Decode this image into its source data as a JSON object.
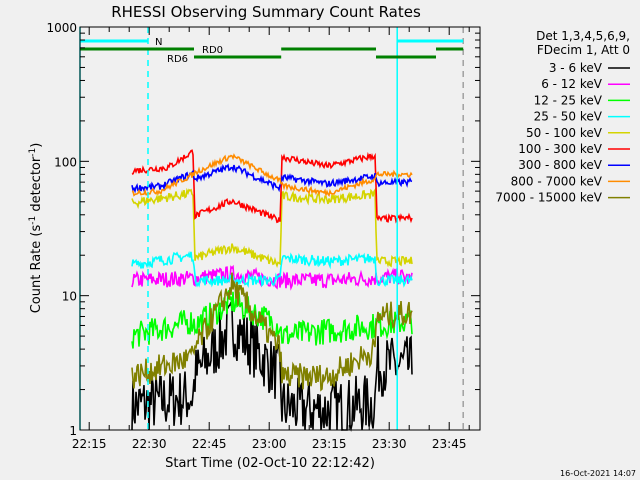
{
  "chart_data": {
    "type": "line",
    "title": "RHESSI Observing Summary Count Rates",
    "xlabel": "Start Time (02-Oct-10 22:12:42)",
    "ylabel": "Count Rate (s",
    "ylabel_sup1": "-1",
    "ylabel_mid": " detector",
    "ylabel_sup2": "-1",
    "ylabel_end": ")",
    "x_units": "minutes since 22:12:42",
    "xlim": [
      0,
      100
    ],
    "ylim": [
      1,
      1000
    ],
    "yscale": "log",
    "xticks": [
      {
        "m": 2.3,
        "label": "22:15"
      },
      {
        "m": 17.3,
        "label": "22:30"
      },
      {
        "m": 32.3,
        "label": "22:45"
      },
      {
        "m": 47.3,
        "label": "23:00"
      },
      {
        "m": 62.3,
        "label": "23:15"
      },
      {
        "m": 77.3,
        "label": "23:30"
      },
      {
        "m": 92.3,
        "label": "23:45"
      }
    ],
    "yticks": [
      {
        "v": 1,
        "label": "1"
      },
      {
        "v": 10,
        "label": "10"
      },
      {
        "v": 100,
        "label": "100"
      },
      {
        "v": 1000,
        "label": "1000"
      }
    ],
    "legend_header": [
      "Det 1,3,4,5,6,9,",
      "FDecim 1, Att 0"
    ],
    "legend_placement": "right",
    "series": [
      {
        "name": "3 - 6 keV",
        "color": "#000000",
        "noise": 0.45,
        "points": [
          [
            13,
            1.5
          ],
          [
            28.4,
            1.8
          ],
          [
            28.6,
            2.5
          ],
          [
            38,
            6
          ],
          [
            50.1,
            2.5
          ],
          [
            50.4,
            1.5
          ],
          [
            62,
            1.4
          ],
          [
            73.9,
            1.6
          ],
          [
            74.1,
            3
          ],
          [
            83.2,
            3
          ]
        ]
      },
      {
        "name": "6 - 12 keV",
        "color": "#ff00ff",
        "noise": 0.12,
        "points": [
          [
            13,
            13
          ],
          [
            28.5,
            13.5
          ],
          [
            38,
            14.5
          ],
          [
            50.2,
            13
          ],
          [
            62,
            13
          ],
          [
            74,
            13.5
          ],
          [
            80,
            14
          ],
          [
            83.2,
            13
          ]
        ]
      },
      {
        "name": "12 - 25 keV",
        "color": "#00ff00",
        "noise": 0.2,
        "points": [
          [
            13,
            5
          ],
          [
            28.4,
            6.5
          ],
          [
            28.6,
            6
          ],
          [
            38,
            9
          ],
          [
            50.1,
            6
          ],
          [
            50.4,
            5
          ],
          [
            74,
            6
          ],
          [
            83.2,
            6.5
          ]
        ]
      },
      {
        "name": "25 - 50 keV",
        "color": "#00ffff",
        "noise": 0.08,
        "points": [
          [
            13,
            17
          ],
          [
            28.4,
            20
          ],
          [
            28.6,
            13
          ],
          [
            50.1,
            13
          ],
          [
            50.4,
            19
          ],
          [
            62,
            18
          ],
          [
            73.9,
            19
          ],
          [
            74.1,
            13
          ],
          [
            83.2,
            13
          ]
        ]
      },
      {
        "name": "50 - 100 keV",
        "color": "#d4d400",
        "noise": 0.07,
        "points": [
          [
            13,
            49
          ],
          [
            28.4,
            58
          ],
          [
            28.6,
            19
          ],
          [
            38,
            23
          ],
          [
            50.1,
            17
          ],
          [
            50.4,
            55
          ],
          [
            62,
            52
          ],
          [
            73.9,
            57
          ],
          [
            74.1,
            18
          ],
          [
            83.2,
            18
          ]
        ]
      },
      {
        "name": "100 - 300 keV",
        "color": "#ff0000",
        "noise": 0.05,
        "points": [
          [
            13,
            85
          ],
          [
            22,
            90
          ],
          [
            28.4,
            119
          ],
          [
            28.6,
            39
          ],
          [
            38,
            51
          ],
          [
            50.1,
            36
          ],
          [
            50.4,
            108
          ],
          [
            62,
            92
          ],
          [
            73.9,
            111
          ],
          [
            74.1,
            37
          ],
          [
            83.2,
            38
          ]
        ]
      },
      {
        "name": "300 - 800 keV",
        "color": "#0000ff",
        "noise": 0.05,
        "points": [
          [
            13,
            63
          ],
          [
            20,
            65
          ],
          [
            28.4,
            82
          ],
          [
            28.6,
            74
          ],
          [
            38,
            92
          ],
          [
            50.1,
            63
          ],
          [
            50.4,
            76
          ],
          [
            62,
            68
          ],
          [
            73.9,
            78
          ],
          [
            74.1,
            69
          ],
          [
            83.2,
            70
          ]
        ]
      },
      {
        "name": "800 - 7000 keV",
        "color": "#ff8c00",
        "noise": 0.04,
        "points": [
          [
            13,
            58
          ],
          [
            20,
            60
          ],
          [
            28.4,
            80
          ],
          [
            28.6,
            82
          ],
          [
            38,
            110
          ],
          [
            50.1,
            71
          ],
          [
            50.4,
            66
          ],
          [
            62,
            58
          ],
          [
            73.9,
            74
          ],
          [
            74.1,
            80
          ],
          [
            83.2,
            80
          ]
        ]
      },
      {
        "name": "7000 - 15000 keV",
        "color": "#808000",
        "noise": 0.2,
        "points": [
          [
            13,
            2.5
          ],
          [
            28.4,
            3.5
          ],
          [
            28.6,
            4
          ],
          [
            38,
            12
          ],
          [
            50.1,
            4
          ],
          [
            50.4,
            2.5
          ],
          [
            62,
            2.5
          ],
          [
            73.9,
            4
          ],
          [
            74.1,
            7
          ],
          [
            83.2,
            7.5
          ]
        ]
      }
    ],
    "flags": [
      {
        "label": "N",
        "color": "#00ffff",
        "level": 1,
        "ranges": [
          [
            0,
            17
          ],
          [
            79.3,
            95.8
          ]
        ]
      },
      {
        "label": "RD0",
        "color": "#008000",
        "level": 2,
        "ranges": [
          [
            0,
            28.5
          ],
          [
            50.3,
            74
          ],
          [
            89,
            95.8
          ]
        ]
      },
      {
        "label": "RD6",
        "color": "#008000",
        "level": 3,
        "ranges": [
          [
            28.5,
            50.3
          ],
          [
            74,
            89
          ]
        ]
      }
    ],
    "vlines": [
      {
        "m": 0,
        "color": "#00ffff",
        "dash": false
      },
      {
        "m": 17,
        "color": "#00ffff",
        "dash": true
      },
      {
        "m": 79.3,
        "color": "#00ffff",
        "dash": false
      },
      {
        "m": 95.8,
        "color": "#a0a0a0",
        "dash": true
      }
    ]
  },
  "footer": {
    "timestamp": "16-Oct-2021 14:07"
  }
}
